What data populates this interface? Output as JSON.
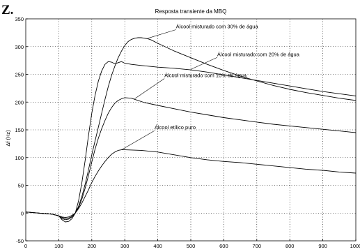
{
  "figure": {
    "corner_label": "Z."
  },
  "chart_data": {
    "type": "line",
    "title": "Resposta transiente da MBQ",
    "xlabel": "",
    "ylabel": "Δf (Hz)",
    "xlim": [
      0,
      1000
    ],
    "ylim": [
      -50,
      350
    ],
    "x_ticks": [
      0,
      100,
      200,
      300,
      400,
      500,
      600,
      700,
      800,
      900,
      1000
    ],
    "y_ticks": [
      -50,
      0,
      50,
      100,
      150,
      200,
      250,
      300,
      350
    ],
    "grid": true,
    "series": [
      {
        "name": "Álcool misturado com 30% de água",
        "x": [
          0,
          40,
          80,
          100,
          110,
          120,
          130,
          140,
          150,
          160,
          170,
          180,
          190,
          200,
          210,
          220,
          230,
          240,
          250,
          260,
          270,
          280,
          290,
          300,
          310,
          320,
          330,
          340,
          350,
          360,
          370,
          380,
          400,
          450,
          500,
          550,
          600,
          650,
          700,
          750,
          800,
          850,
          900,
          950,
          1000
        ],
        "y": [
          2,
          0,
          -2,
          -5,
          -10,
          -12,
          -11,
          -7,
          0,
          12,
          30,
          52,
          78,
          105,
          130,
          155,
          180,
          205,
          228,
          248,
          265,
          280,
          292,
          302,
          309,
          313,
          315,
          316,
          316,
          315,
          314,
          312,
          306,
          292,
          280,
          268,
          257,
          247,
          238,
          230,
          223,
          217,
          212,
          207,
          203
        ]
      },
      {
        "name": "Álcool misturado com 20% de água",
        "x": [
          0,
          40,
          80,
          100,
          110,
          120,
          130,
          140,
          150,
          160,
          170,
          180,
          190,
          200,
          210,
          220,
          230,
          240,
          250,
          260,
          270,
          280,
          290,
          300,
          320,
          350,
          400,
          450,
          500,
          550,
          600,
          650,
          700,
          750,
          800,
          850,
          900,
          950,
          1000
        ],
        "y": [
          2,
          0,
          -2,
          -5,
          -12,
          -16,
          -15,
          -10,
          0,
          22,
          55,
          95,
          140,
          180,
          212,
          238,
          256,
          268,
          273,
          272,
          269,
          271,
          273,
          270,
          268,
          266,
          263,
          261,
          258,
          254,
          249,
          244,
          239,
          234,
          229,
          224,
          219,
          215,
          211
        ]
      },
      {
        "name": "Álcool misturado com 10% de água",
        "x": [
          0,
          40,
          80,
          100,
          110,
          120,
          130,
          140,
          150,
          160,
          170,
          180,
          190,
          200,
          210,
          220,
          230,
          240,
          250,
          260,
          270,
          280,
          290,
          300,
          320,
          340,
          360,
          400,
          450,
          500,
          550,
          600,
          650,
          700,
          750,
          800,
          850,
          900,
          950,
          1000
        ],
        "y": [
          2,
          0,
          -2,
          -5,
          -8,
          -10,
          -9,
          -6,
          0,
          10,
          25,
          45,
          68,
          92,
          115,
          135,
          152,
          167,
          180,
          190,
          198,
          203,
          206,
          208,
          207,
          203,
          199,
          194,
          188,
          182,
          177,
          172,
          168,
          164,
          160,
          157,
          154,
          151,
          148,
          145
        ]
      },
      {
        "name": "Álcool etílico puro",
        "x": [
          0,
          40,
          80,
          100,
          110,
          120,
          130,
          140,
          150,
          160,
          170,
          180,
          190,
          200,
          210,
          220,
          230,
          240,
          250,
          260,
          270,
          280,
          290,
          300,
          350,
          400,
          450,
          500,
          550,
          600,
          650,
          700,
          750,
          800,
          850,
          900,
          950,
          1000
        ],
        "y": [
          2,
          0,
          -2,
          -5,
          -7,
          -8,
          -7,
          -4,
          0,
          8,
          18,
          30,
          42,
          55,
          66,
          76,
          85,
          93,
          100,
          106,
          110,
          113,
          114,
          114,
          113,
          110,
          105,
          100,
          96,
          93,
          91,
          88,
          85,
          82,
          79,
          77,
          74,
          72
        ]
      }
    ],
    "annotations": [
      {
        "text": "Álcool misturado com 30% de água",
        "x": 455,
        "y": 333,
        "target": [
          370,
          315
        ]
      },
      {
        "text": "Álcool misturado com 20% de água",
        "x": 580,
        "y": 283,
        "target": [
          500,
          259
        ]
      },
      {
        "text": "Álcool misturado com 10% de água",
        "x": 420,
        "y": 245,
        "target": [
          330,
          206
        ]
      },
      {
        "text": "Álcool etílico puro",
        "x": 390,
        "y": 151,
        "target": [
          290,
          114
        ]
      }
    ]
  }
}
